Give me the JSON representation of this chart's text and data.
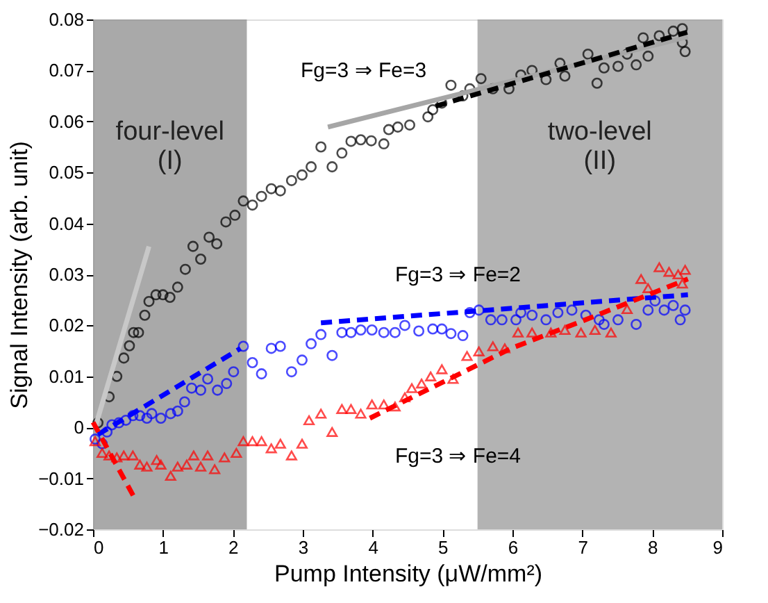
{
  "chart_data": {
    "type": "scatter",
    "xlabel": "Pump Intensity  (μW/mm²)",
    "ylabel": "Signal Intensity (arb. unit)",
    "xlim": [
      0,
      9
    ],
    "xticks": [
      0,
      1,
      2,
      3,
      4,
      5,
      6,
      7,
      8,
      9
    ],
    "ylim": [
      -0.02,
      0.08
    ],
    "yticks": [
      -0.02,
      -0.01,
      0,
      0.01,
      0.02,
      0.03,
      0.04,
      0.05,
      0.06,
      0.07,
      0.08
    ],
    "bands": [
      {
        "axis": "x",
        "from": 0,
        "to": 2.2,
        "label": [
          "four-level",
          "(I)"
        ],
        "color": "#8c8c8c"
      },
      {
        "axis": "x",
        "from": 5.5,
        "to": 9,
        "label": [
          "two-level",
          "(II)"
        ],
        "color": "#9a9a9a"
      }
    ],
    "series": [
      {
        "marker": "circle",
        "color": "#000000",
        "x": [
          0.07,
          0.23,
          0.34,
          0.44,
          0.52,
          0.58,
          0.65,
          0.74,
          0.8,
          0.9,
          1.0,
          1.1,
          1.21,
          1.32,
          1.43,
          1.54,
          1.66,
          1.77,
          1.9,
          2.03,
          2.15,
          2.28,
          2.41,
          2.55,
          2.68,
          2.84,
          2.99,
          3.12,
          3.26,
          3.42,
          3.56,
          3.69,
          3.83,
          3.98,
          4.16,
          4.23,
          4.36,
          4.53,
          4.79,
          4.86,
          4.99,
          5.12,
          5.29,
          5.39,
          5.55,
          5.72,
          5.95,
          6.12,
          6.28,
          6.48,
          6.68,
          6.75,
          7.08,
          7.21,
          7.31,
          7.51,
          7.64,
          7.77,
          7.87,
          7.94,
          8.1,
          8.3,
          8.43,
          8.43,
          8.47
        ],
        "values": [
          0.0009,
          0.006,
          0.01,
          0.0136,
          0.016,
          0.0186,
          0.0186,
          0.022,
          0.0247,
          0.026,
          0.026,
          0.0255,
          0.0275,
          0.031,
          0.0355,
          0.033,
          0.0373,
          0.036,
          0.0403,
          0.0416,
          0.0444,
          0.0436,
          0.0453,
          0.0468,
          0.0464,
          0.0484,
          0.0495,
          0.0511,
          0.055,
          0.0511,
          0.0538,
          0.0561,
          0.0564,
          0.0562,
          0.0556,
          0.0584,
          0.0589,
          0.0593,
          0.0609,
          0.0623,
          0.0636,
          0.0671,
          0.065,
          0.0664,
          0.0684,
          0.0664,
          0.0664,
          0.0691,
          0.07,
          0.0682,
          0.0714,
          0.0689,
          0.0732,
          0.0675,
          0.0705,
          0.0708,
          0.0732,
          0.0711,
          0.0764,
          0.0728,
          0.0768,
          0.0777,
          0.0782,
          0.0755,
          0.0737
        ]
      },
      {
        "marker": "circle",
        "color": "#0000ff",
        "x": [
          0.03,
          0.13,
          0.2,
          0.27,
          0.37,
          0.47,
          0.57,
          0.67,
          0.77,
          0.84,
          0.97,
          1.11,
          1.21,
          1.31,
          1.41,
          1.54,
          1.64,
          1.78,
          1.91,
          2.01,
          2.15,
          2.28,
          2.41,
          2.55,
          2.68,
          2.84,
          2.99,
          3.12,
          3.26,
          3.42,
          3.56,
          3.69,
          3.83,
          3.99,
          4.16,
          4.32,
          4.46,
          4.66,
          4.86,
          4.99,
          5.12,
          5.29,
          5.39,
          5.52,
          5.69,
          5.85,
          6.05,
          6.12,
          6.28,
          6.48,
          6.65,
          6.85,
          7.05,
          7.24,
          7.31,
          7.51,
          7.77,
          7.94,
          8.04,
          8.17,
          8.3,
          8.4,
          8.47
        ],
        "values": [
          -0.0023,
          -0.0032,
          -0.0009,
          0.0005,
          0.0009,
          0.0014,
          0.0023,
          0.0023,
          0.0018,
          0.0027,
          0.0018,
          0.0027,
          0.0032,
          0.005,
          0.0077,
          0.0073,
          0.0095,
          0.0073,
          0.0086,
          0.0109,
          0.0159,
          0.0127,
          0.0105,
          0.0155,
          0.0159,
          0.0109,
          0.0132,
          0.0164,
          0.0182,
          0.0141,
          0.0186,
          0.0186,
          0.0191,
          0.0191,
          0.0186,
          0.0186,
          0.02,
          0.0189,
          0.0193,
          0.0193,
          0.0184,
          0.018,
          0.0225,
          0.023,
          0.0211,
          0.0211,
          0.0211,
          0.0225,
          0.022,
          0.0211,
          0.0225,
          0.023,
          0.022,
          0.0211,
          0.0202,
          0.0211,
          0.0202,
          0.023,
          0.0248,
          0.023,
          0.0239,
          0.0211,
          0.023
        ]
      },
      {
        "marker": "triangle",
        "color": "#ff0000",
        "x": [
          0.03,
          0.13,
          0.23,
          0.34,
          0.44,
          0.57,
          0.67,
          0.77,
          0.91,
          0.97,
          1.11,
          1.21,
          1.34,
          1.44,
          1.54,
          1.64,
          1.74,
          1.88,
          2.05,
          2.15,
          2.28,
          2.41,
          2.55,
          2.68,
          2.84,
          2.99,
          3.09,
          3.26,
          3.42,
          3.56,
          3.69,
          3.83,
          3.99,
          4.16,
          4.32,
          4.46,
          4.56,
          4.7,
          4.83,
          4.99,
          5.15,
          5.35,
          5.52,
          5.72,
          5.89,
          6.08,
          6.28,
          6.55,
          6.75,
          6.98,
          7.18,
          7.41,
          7.64,
          7.84,
          7.94,
          8.1,
          8.24,
          8.37,
          8.43,
          8.47
        ],
        "values": [
          -0.0027,
          -0.005,
          -0.0055,
          -0.0059,
          -0.0055,
          -0.0055,
          -0.0073,
          -0.0077,
          -0.0064,
          -0.0073,
          -0.0095,
          -0.0077,
          -0.0073,
          -0.0055,
          -0.0077,
          -0.0055,
          -0.0082,
          -0.0059,
          -0.005,
          -0.0027,
          -0.0027,
          -0.0027,
          -0.0041,
          -0.0032,
          -0.0055,
          -0.0032,
          0.0014,
          0.0027,
          -0.0009,
          0.0036,
          0.0036,
          0.0027,
          0.0045,
          0.0045,
          0.0041,
          0.0059,
          0.0077,
          0.0086,
          0.01,
          0.0114,
          0.0095,
          0.014,
          0.0149,
          0.0159,
          0.0155,
          0.0186,
          0.0186,
          0.0186,
          0.0191,
          0.0186,
          0.0191,
          0.0186,
          0.0232,
          0.0291,
          0.0273,
          0.0314,
          0.0305,
          0.03,
          0.0282,
          0.0309
        ]
      },
      {
        "type": "line",
        "line_style": "solid",
        "color": "#c8c8c8",
        "x": [
          0.03,
          0.8
        ],
        "values": [
          0.0,
          0.0355
        ]
      },
      {
        "type": "line",
        "line_style": "solid",
        "color": "#a6a6a6",
        "x": [
          3.36,
          8.51
        ],
        "values": [
          0.0589,
          0.0766
        ]
      },
      {
        "type": "line",
        "line_style": "dashed",
        "color": "#000000",
        "x": [
          4.9,
          8.5
        ],
        "values": [
          0.063,
          0.0775
        ]
      },
      {
        "type": "line",
        "line_style": "dashed",
        "color": "#0000ff",
        "x": [
          0.07,
          2.11
        ],
        "values": [
          -0.0014,
          0.0155
        ]
      },
      {
        "type": "line",
        "line_style": "dashed",
        "color": "#0000ff",
        "x": [
          3.26,
          8.51
        ],
        "values": [
          0.0205,
          0.026
        ]
      },
      {
        "type": "line",
        "line_style": "dashed",
        "color": "#ff0000",
        "x": [
          0.0,
          0.6
        ],
        "values": [
          0.001,
          -0.014
        ]
      },
      {
        "type": "line",
        "line_style": "dashed",
        "color": "#ff0000",
        "x": [
          3.96,
          5.98,
          6.97,
          8.51
        ],
        "values": [
          0.0018,
          0.0155,
          0.0207,
          0.0291
        ]
      }
    ],
    "annotations": [
      "Fg=3 ⇒ Fe=3",
      "Fg=3 ⇒ Fe=2",
      "Fg=3 ⇒ Fe=4"
    ]
  }
}
